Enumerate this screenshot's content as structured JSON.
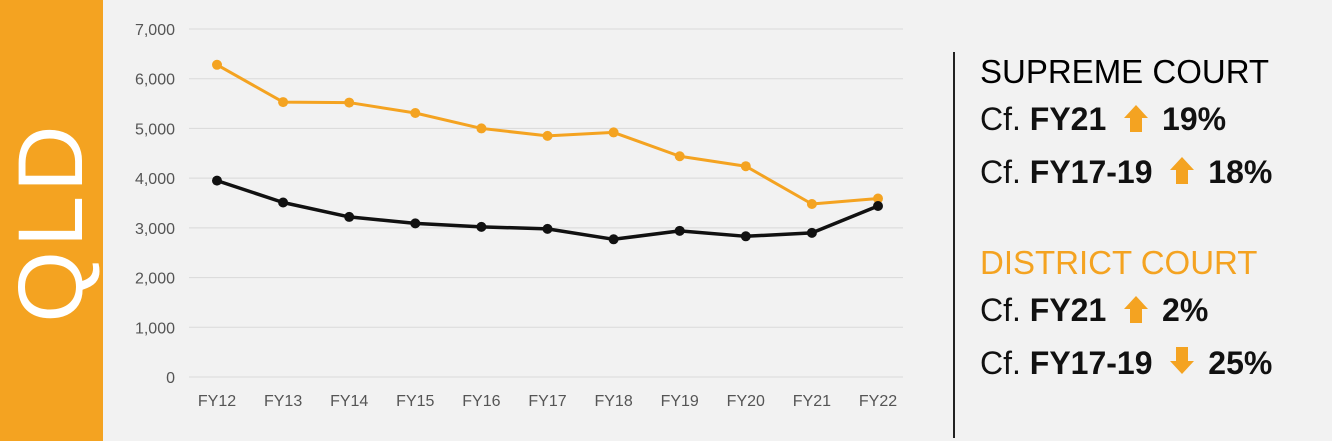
{
  "side_label": "QLD",
  "colors": {
    "orange": "#f4a321",
    "black": "#111111",
    "grid": "#d9d9d9"
  },
  "chart_data": {
    "type": "line",
    "categories": [
      "FY12",
      "FY13",
      "FY14",
      "FY15",
      "FY16",
      "FY17",
      "FY18",
      "FY19",
      "FY20",
      "FY21",
      "FY22"
    ],
    "series": [
      {
        "color": "#f4a321",
        "values": [
          6280,
          5530,
          5520,
          5310,
          5000,
          4850,
          4920,
          4440,
          4240,
          3480,
          3590
        ]
      },
      {
        "color": "#111111",
        "values": [
          3950,
          3510,
          3220,
          3090,
          3020,
          2980,
          2770,
          2940,
          2830,
          2900,
          3440
        ]
      }
    ],
    "ylim": [
      0,
      7000
    ],
    "yticks": [
      "0",
      "1,000",
      "2,000",
      "3,000",
      "4,000",
      "5,000",
      "6,000",
      "7,000"
    ],
    "grid": true,
    "title": "",
    "xlabel": "",
    "ylabel": ""
  },
  "stats": [
    {
      "heading": "SUPREME COURT",
      "heading_color": "#111111",
      "rows": [
        {
          "prefix": "Cf.",
          "period": "FY21",
          "direction": "up",
          "pct": "19%"
        },
        {
          "prefix": "Cf.",
          "period": "FY17-19",
          "direction": "up",
          "pct": "18%"
        }
      ]
    },
    {
      "heading": "DISTRICT COURT",
      "heading_color": "#f4a321",
      "rows": [
        {
          "prefix": "Cf.",
          "period": "FY21",
          "direction": "up",
          "pct": "2%"
        },
        {
          "prefix": "Cf.",
          "period": "FY17-19",
          "direction": "down",
          "pct": "25%"
        }
      ]
    }
  ]
}
